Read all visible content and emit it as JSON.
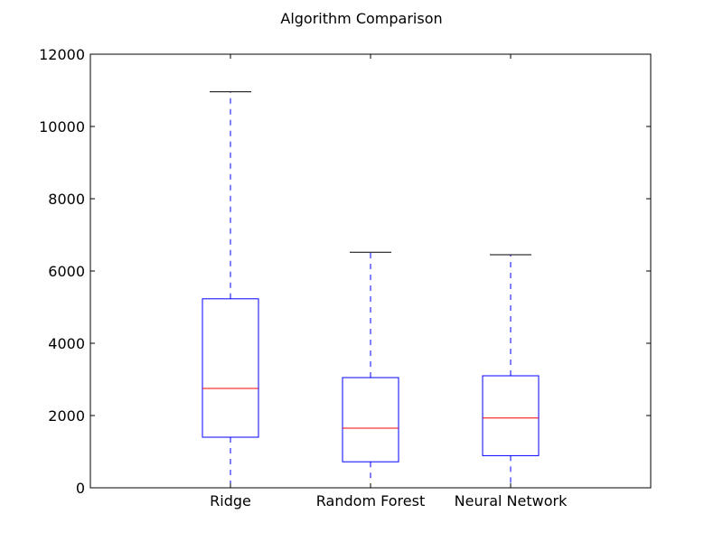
{
  "chart_data": {
    "type": "box",
    "title": "Algorithm Comparison",
    "xlabel": "",
    "ylabel": "",
    "ylim": [
      0,
      12000
    ],
    "yticks": [
      "0",
      "2000",
      "4000",
      "6000",
      "8000",
      "10000",
      "12000"
    ],
    "categories": [
      "Ridge",
      "Random Forest",
      "Neural Network"
    ],
    "boxes": [
      {
        "name": "Ridge",
        "whisker_low": 0,
        "q1": 1400,
        "median": 2750,
        "q3": 5230,
        "whisker_high": 10960
      },
      {
        "name": "Random Forest",
        "whisker_low": 0,
        "q1": 720,
        "median": 1650,
        "q3": 3050,
        "whisker_high": 6520
      },
      {
        "name": "Neural Network",
        "whisker_low": 0,
        "q1": 890,
        "median": 1930,
        "q3": 3100,
        "whisker_high": 6450
      }
    ],
    "grid": false,
    "colors": {
      "box": "#0000ff",
      "whisker": "#0000ff",
      "median": "#ff0000",
      "cap": "#000000",
      "axes": "#000000"
    }
  }
}
